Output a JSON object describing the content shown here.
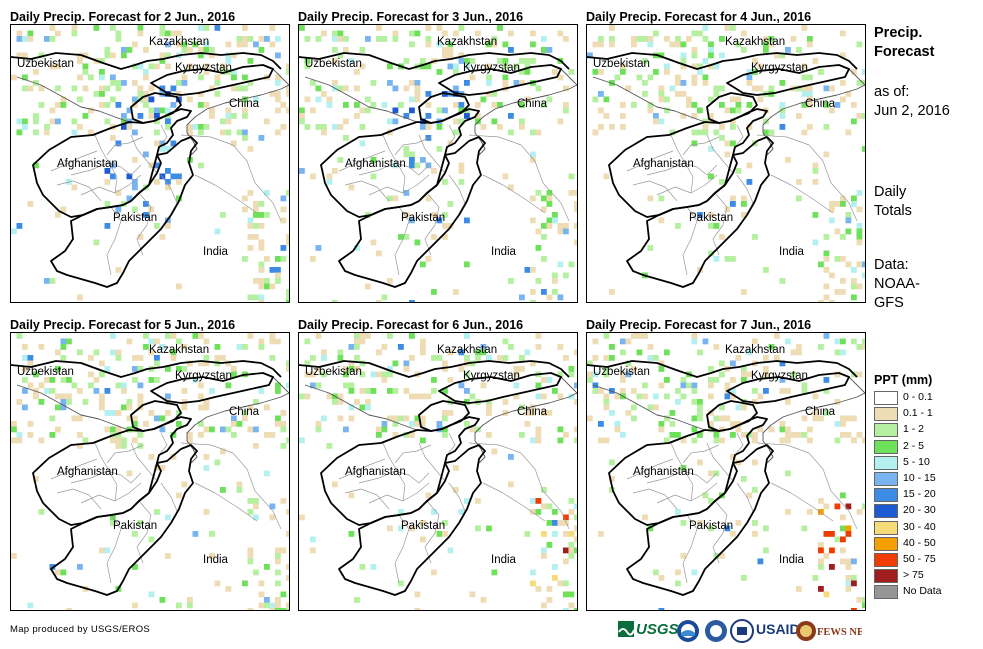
{
  "panels": [
    {
      "title": "Daily Precip. Forecast for 2 Jun., 2016",
      "intensity": 1.0
    },
    {
      "title": "Daily Precip. Forecast for 3 Jun., 2016",
      "intensity": 0.7
    },
    {
      "title": "Daily Precip. Forecast for 4 Jun., 2016",
      "intensity": 0.45
    },
    {
      "title": "Daily Precip. Forecast for 5 Jun., 2016",
      "intensity": 0.3
    },
    {
      "title": "Daily Precip. Forecast for 6 Jun., 2016",
      "intensity": 0.35
    },
    {
      "title": "Daily Precip. Forecast for 7 Jun., 2016",
      "intensity": 0.55
    }
  ],
  "map_labels": {
    "kazakhstan": "Kazakhstan",
    "uzbekistan": "Uzbekistan",
    "kyrgyzstan": "Kyrgyzstan",
    "china": "China",
    "afghanistan": "Afghanistan",
    "pakistan": "Pakistan",
    "india": "India"
  },
  "sidebar": {
    "title_line1": "Precip.",
    "title_line2": "Forecast",
    "asof_line1": "as of:",
    "asof_line2": "Jun 2, 2016",
    "totals_line1": "Daily",
    "totals_line2": "Totals",
    "data_line1": "Data:",
    "data_line2": "NOAA-",
    "data_line3": "GFS"
  },
  "legend": {
    "title": "PPT (mm)",
    "items": [
      {
        "label": "0 - 0.1",
        "color": "#ffffff"
      },
      {
        "label": "0.1 - 1",
        "color": "#eedcb4"
      },
      {
        "label": "1 - 2",
        "color": "#b4f0a0"
      },
      {
        "label": "2 - 5",
        "color": "#6ee05a"
      },
      {
        "label": "5 - 10",
        "color": "#b4f0f0"
      },
      {
        "label": "10 - 15",
        "color": "#78b4f0"
      },
      {
        "label": "15 - 20",
        "color": "#3c8ce6"
      },
      {
        "label": "20 - 30",
        "color": "#1e5ad2"
      },
      {
        "label": "30 - 40",
        "color": "#f5dc78"
      },
      {
        "label": "40 - 50",
        "color": "#f5a000"
      },
      {
        "label": "50 - 75",
        "color": "#f03c00"
      },
      {
        "label": "> 75",
        "color": "#a01e1e"
      },
      {
        "label": "No Data",
        "color": "#969696"
      }
    ]
  },
  "footer": {
    "credit": "Map produced by USGS/EROS",
    "logo_usgs": "USGS",
    "logo_usaid": "USAID",
    "logo_fewsnet": "FEWS NET"
  }
}
